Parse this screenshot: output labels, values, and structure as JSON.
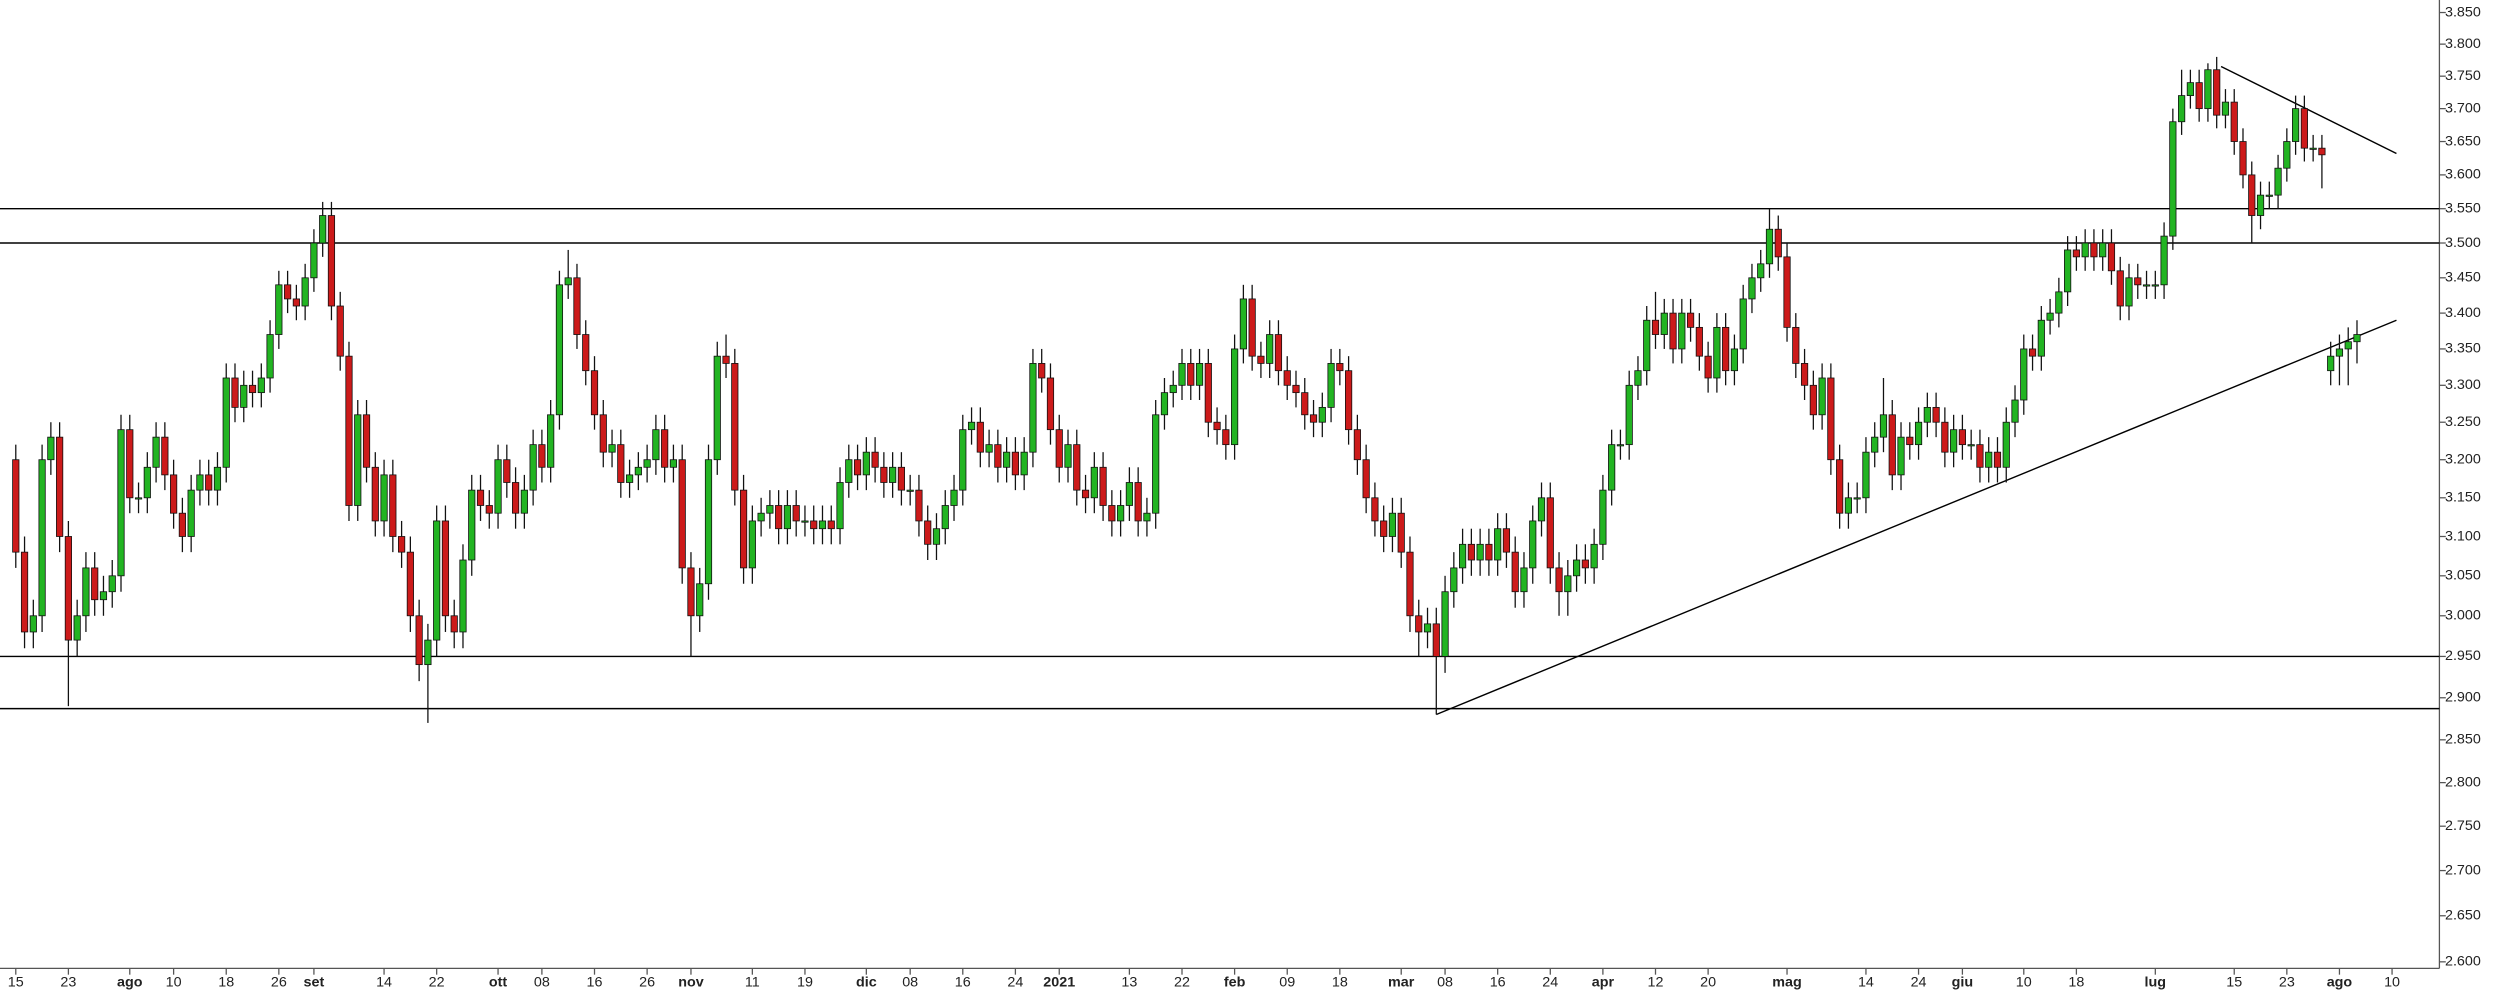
{
  "chart_data": {
    "type": "candlestick",
    "log_scale": true,
    "grid": false,
    "up_color": "#22b422",
    "down_color": "#cc1a1a",
    "line_color": "#000000",
    "xlim": [
      -1.8,
      276.4
    ],
    "ylim": [
      2.593,
      3.87
    ],
    "open": [
      3.2,
      3.08,
      2.98,
      3.0,
      3.2,
      3.23,
      3.1,
      2.97,
      3.0,
      3.06,
      3.02,
      3.03,
      3.05,
      3.24,
      3.15,
      3.15,
      3.19,
      3.23,
      3.18,
      3.13,
      3.1,
      3.16,
      3.18,
      3.16,
      3.19,
      3.31,
      3.27,
      3.3,
      3.29,
      3.31,
      3.37,
      3.44,
      3.42,
      3.41,
      3.45,
      3.5,
      3.54,
      3.41,
      3.34,
      3.14,
      3.26,
      3.19,
      3.12,
      3.18,
      3.1,
      3.08,
      3.0,
      2.94,
      2.97,
      3.12,
      3.0,
      2.98,
      3.07,
      3.16,
      3.14,
      3.13,
      3.2,
      3.17,
      3.13,
      3.16,
      3.22,
      3.19,
      3.26,
      3.44,
      3.45,
      3.37,
      3.32,
      3.26,
      3.21,
      3.22,
      3.17,
      3.18,
      3.19,
      3.2,
      3.24,
      3.19,
      3.2,
      3.06,
      3.0,
      3.04,
      3.2,
      3.34,
      3.33,
      3.16,
      3.06,
      3.12,
      3.13,
      3.14,
      3.11,
      3.14,
      3.12,
      3.12,
      3.11,
      3.12,
      3.11,
      3.17,
      3.2,
      3.18,
      3.21,
      3.19,
      3.17,
      3.19,
      3.16,
      3.16,
      3.12,
      3.09,
      3.11,
      3.14,
      3.16,
      3.24,
      3.25,
      3.21,
      3.22,
      3.19,
      3.21,
      3.18,
      3.21,
      3.33,
      3.31,
      3.24,
      3.19,
      3.22,
      3.16,
      3.15,
      3.19,
      3.14,
      3.12,
      3.14,
      3.17,
      3.12,
      3.13,
      3.26,
      3.29,
      3.3,
      3.33,
      3.3,
      3.33,
      3.25,
      3.24,
      3.22,
      3.35,
      3.42,
      3.34,
      3.33,
      3.37,
      3.32,
      3.3,
      3.29,
      3.26,
      3.25,
      3.27,
      3.33,
      3.32,
      3.24,
      3.2,
      3.15,
      3.12,
      3.1,
      3.13,
      3.08,
      3.0,
      2.98,
      2.99,
      2.95,
      3.03,
      3.06,
      3.09,
      3.07,
      3.09,
      3.07,
      3.11,
      3.08,
      3.03,
      3.06,
      3.12,
      3.15,
      3.06,
      3.03,
      3.05,
      3.07,
      3.06,
      3.09,
      3.16,
      3.22,
      3.22,
      3.3,
      3.32,
      3.39,
      3.37,
      3.4,
      3.35,
      3.4,
      3.38,
      3.34,
      3.31,
      3.38,
      3.32,
      3.35,
      3.42,
      3.45,
      3.47,
      3.52,
      3.48,
      3.38,
      3.33,
      3.3,
      3.26,
      3.31,
      3.2,
      3.13,
      3.15,
      3.15,
      3.21,
      3.23,
      3.26,
      3.18,
      3.23,
      3.22,
      3.25,
      3.27,
      3.25,
      3.21,
      3.24,
      3.22,
      3.22,
      3.19,
      3.21,
      3.19,
      3.25,
      3.28,
      3.35,
      3.34,
      3.39,
      3.4,
      3.43,
      3.49,
      3.48,
      3.5,
      3.48,
      3.5,
      3.46,
      3.41,
      3.45,
      3.44,
      3.44,
      3.44,
      3.51,
      3.68,
      3.72,
      3.74,
      3.7,
      3.76,
      3.69,
      3.71,
      3.65,
      3.6,
      3.54,
      3.57,
      3.57,
      3.61,
      3.65,
      3.7,
      3.64,
      3.64,
      3.32,
      3.34,
      3.35,
      3.36
    ],
    "high": [
      3.22,
      3.1,
      3.02,
      3.22,
      3.25,
      3.25,
      3.12,
      3.02,
      3.08,
      3.08,
      3.05,
      3.07,
      3.26,
      3.26,
      3.17,
      3.21,
      3.25,
      3.25,
      3.2,
      3.15,
      3.18,
      3.2,
      3.2,
      3.21,
      3.33,
      3.33,
      3.32,
      3.32,
      3.33,
      3.39,
      3.46,
      3.46,
      3.44,
      3.47,
      3.52,
      3.56,
      3.56,
      3.43,
      3.36,
      3.28,
      3.28,
      3.21,
      3.2,
      3.2,
      3.12,
      3.1,
      3.02,
      2.99,
      3.14,
      3.14,
      3.02,
      3.09,
      3.18,
      3.18,
      3.16,
      3.22,
      3.22,
      3.19,
      3.18,
      3.24,
      3.24,
      3.28,
      3.46,
      3.49,
      3.47,
      3.39,
      3.34,
      3.28,
      3.24,
      3.24,
      3.2,
      3.21,
      3.22,
      3.26,
      3.26,
      3.22,
      3.22,
      3.08,
      3.06,
      3.22,
      3.36,
      3.37,
      3.35,
      3.18,
      3.14,
      3.15,
      3.16,
      3.16,
      3.16,
      3.16,
      3.14,
      3.14,
      3.14,
      3.14,
      3.19,
      3.22,
      3.22,
      3.23,
      3.23,
      3.21,
      3.21,
      3.21,
      3.18,
      3.18,
      3.14,
      3.13,
      3.16,
      3.18,
      3.26,
      3.27,
      3.27,
      3.24,
      3.24,
      3.23,
      3.23,
      3.23,
      3.35,
      3.35,
      3.33,
      3.26,
      3.24,
      3.24,
      3.18,
      3.21,
      3.21,
      3.16,
      3.16,
      3.19,
      3.19,
      3.15,
      3.28,
      3.31,
      3.32,
      3.35,
      3.35,
      3.35,
      3.35,
      3.27,
      3.26,
      3.37,
      3.44,
      3.44,
      3.36,
      3.39,
      3.39,
      3.34,
      3.32,
      3.31,
      3.28,
      3.29,
      3.35,
      3.35,
      3.34,
      3.26,
      3.22,
      3.17,
      3.14,
      3.15,
      3.15,
      3.1,
      3.02,
      3.01,
      3.01,
      3.05,
      3.08,
      3.11,
      3.11,
      3.11,
      3.11,
      3.13,
      3.13,
      3.1,
      3.08,
      3.14,
      3.17,
      3.17,
      3.08,
      3.07,
      3.09,
      3.09,
      3.11,
      3.18,
      3.24,
      3.24,
      3.32,
      3.34,
      3.41,
      3.43,
      3.42,
      3.42,
      3.42,
      3.42,
      3.4,
      3.36,
      3.4,
      3.4,
      3.37,
      3.44,
      3.47,
      3.49,
      3.55,
      3.54,
      3.5,
      3.4,
      3.35,
      3.32,
      3.33,
      3.33,
      3.22,
      3.17,
      3.17,
      3.23,
      3.25,
      3.31,
      3.28,
      3.25,
      3.25,
      3.27,
      3.29,
      3.29,
      3.27,
      3.26,
      3.26,
      3.24,
      3.24,
      3.23,
      3.23,
      3.27,
      3.3,
      3.37,
      3.37,
      3.41,
      3.42,
      3.45,
      3.51,
      3.51,
      3.52,
      3.52,
      3.52,
      3.52,
      3.48,
      3.47,
      3.47,
      3.46,
      3.46,
      3.53,
      3.7,
      3.76,
      3.76,
      3.76,
      3.77,
      3.78,
      3.73,
      3.73,
      3.67,
      3.62,
      3.59,
      3.59,
      3.63,
      3.67,
      3.72,
      3.72,
      3.66,
      3.66,
      3.36,
      3.37,
      3.38,
      3.39
    ],
    "low": [
      3.06,
      2.96,
      2.96,
      2.98,
      3.18,
      3.08,
      2.89,
      2.95,
      2.98,
      3.0,
      3.0,
      3.01,
      3.03,
      3.13,
      3.13,
      3.13,
      3.17,
      3.16,
      3.11,
      3.08,
      3.08,
      3.14,
      3.14,
      3.14,
      3.17,
      3.25,
      3.25,
      3.27,
      3.27,
      3.29,
      3.35,
      3.4,
      3.39,
      3.39,
      3.43,
      3.48,
      3.39,
      3.32,
      3.12,
      3.12,
      3.17,
      3.1,
      3.1,
      3.08,
      3.06,
      2.98,
      2.92,
      2.87,
      2.95,
      2.98,
      2.96,
      2.96,
      3.05,
      3.12,
      3.11,
      3.11,
      3.15,
      3.11,
      3.11,
      3.14,
      3.17,
      3.17,
      3.24,
      3.42,
      3.35,
      3.3,
      3.24,
      3.19,
      3.19,
      3.15,
      3.15,
      3.16,
      3.17,
      3.18,
      3.17,
      3.17,
      3.04,
      2.95,
      2.98,
      3.02,
      3.18,
      3.31,
      3.14,
      3.04,
      3.04,
      3.1,
      3.11,
      3.09,
      3.09,
      3.1,
      3.1,
      3.09,
      3.09,
      3.09,
      3.09,
      3.15,
      3.16,
      3.16,
      3.17,
      3.15,
      3.15,
      3.14,
      3.14,
      3.1,
      3.07,
      3.07,
      3.09,
      3.12,
      3.14,
      3.22,
      3.19,
      3.19,
      3.17,
      3.17,
      3.16,
      3.16,
      3.19,
      3.29,
      3.22,
      3.17,
      3.17,
      3.14,
      3.13,
      3.13,
      3.12,
      3.1,
      3.1,
      3.12,
      3.1,
      3.1,
      3.11,
      3.24,
      3.27,
      3.28,
      3.28,
      3.28,
      3.23,
      3.22,
      3.2,
      3.2,
      3.33,
      3.32,
      3.31,
      3.31,
      3.3,
      3.28,
      3.27,
      3.24,
      3.23,
      3.23,
      3.25,
      3.3,
      3.22,
      3.18,
      3.13,
      3.1,
      3.08,
      3.08,
      3.06,
      2.98,
      2.95,
      2.96,
      2.88,
      2.93,
      3.01,
      3.04,
      3.05,
      3.05,
      3.05,
      3.05,
      3.06,
      3.01,
      3.01,
      3.04,
      3.1,
      3.04,
      3.0,
      3.0,
      3.03,
      3.04,
      3.04,
      3.07,
      3.14,
      3.2,
      3.2,
      3.28,
      3.3,
      3.35,
      3.35,
      3.33,
      3.33,
      3.36,
      3.32,
      3.29,
      3.29,
      3.3,
      3.3,
      3.33,
      3.4,
      3.43,
      3.45,
      3.46,
      3.36,
      3.31,
      3.28,
      3.24,
      3.24,
      3.18,
      3.11,
      3.11,
      3.13,
      3.13,
      3.19,
      3.21,
      3.16,
      3.16,
      3.2,
      3.2,
      3.23,
      3.23,
      3.19,
      3.19,
      3.2,
      3.2,
      3.17,
      3.17,
      3.17,
      3.17,
      3.23,
      3.26,
      3.32,
      3.32,
      3.37,
      3.38,
      3.41,
      3.46,
      3.46,
      3.46,
      3.46,
      3.44,
      3.39,
      3.39,
      3.42,
      3.42,
      3.42,
      3.42,
      3.49,
      3.66,
      3.7,
      3.68,
      3.68,
      3.67,
      3.67,
      3.63,
      3.58,
      3.5,
      3.52,
      3.55,
      3.55,
      3.59,
      3.63,
      3.62,
      3.62,
      3.58,
      3.3,
      3.3,
      3.3,
      3.33
    ],
    "close": [
      3.08,
      2.98,
      3.0,
      3.2,
      3.23,
      3.1,
      2.97,
      3.0,
      3.06,
      3.02,
      3.03,
      3.05,
      3.24,
      3.15,
      3.15,
      3.19,
      3.23,
      3.18,
      3.13,
      3.1,
      3.16,
      3.18,
      3.16,
      3.19,
      3.31,
      3.27,
      3.3,
      3.29,
      3.31,
      3.37,
      3.44,
      3.42,
      3.41,
      3.45,
      3.5,
      3.54,
      3.41,
      3.34,
      3.14,
      3.26,
      3.19,
      3.12,
      3.18,
      3.1,
      3.08,
      3.0,
      2.94,
      2.97,
      3.12,
      3.0,
      2.98,
      3.07,
      3.16,
      3.14,
      3.13,
      3.2,
      3.17,
      3.13,
      3.16,
      3.22,
      3.19,
      3.26,
      3.44,
      3.45,
      3.37,
      3.32,
      3.26,
      3.21,
      3.22,
      3.17,
      3.18,
      3.19,
      3.2,
      3.24,
      3.19,
      3.2,
      3.06,
      3.0,
      3.04,
      3.2,
      3.34,
      3.33,
      3.16,
      3.06,
      3.12,
      3.13,
      3.14,
      3.11,
      3.14,
      3.12,
      3.12,
      3.11,
      3.12,
      3.11,
      3.17,
      3.2,
      3.18,
      3.21,
      3.19,
      3.17,
      3.19,
      3.16,
      3.16,
      3.12,
      3.09,
      3.11,
      3.14,
      3.16,
      3.24,
      3.25,
      3.21,
      3.22,
      3.19,
      3.21,
      3.18,
      3.21,
      3.33,
      3.31,
      3.24,
      3.19,
      3.22,
      3.16,
      3.15,
      3.19,
      3.14,
      3.12,
      3.14,
      3.17,
      3.12,
      3.13,
      3.26,
      3.29,
      3.3,
      3.33,
      3.3,
      3.33,
      3.25,
      3.24,
      3.22,
      3.35,
      3.42,
      3.34,
      3.33,
      3.37,
      3.32,
      3.3,
      3.29,
      3.26,
      3.25,
      3.27,
      3.33,
      3.32,
      3.24,
      3.2,
      3.15,
      3.12,
      3.1,
      3.13,
      3.08,
      3.0,
      2.98,
      2.99,
      2.95,
      3.03,
      3.06,
      3.09,
      3.07,
      3.09,
      3.07,
      3.11,
      3.08,
      3.03,
      3.06,
      3.12,
      3.15,
      3.06,
      3.03,
      3.05,
      3.07,
      3.06,
      3.09,
      3.16,
      3.22,
      3.22,
      3.3,
      3.32,
      3.39,
      3.37,
      3.4,
      3.35,
      3.4,
      3.38,
      3.34,
      3.31,
      3.38,
      3.32,
      3.35,
      3.42,
      3.45,
      3.47,
      3.52,
      3.48,
      3.38,
      3.33,
      3.3,
      3.26,
      3.31,
      3.2,
      3.13,
      3.15,
      3.15,
      3.21,
      3.23,
      3.26,
      3.18,
      3.23,
      3.22,
      3.25,
      3.27,
      3.25,
      3.21,
      3.24,
      3.22,
      3.22,
      3.19,
      3.21,
      3.19,
      3.25,
      3.28,
      3.35,
      3.34,
      3.39,
      3.4,
      3.43,
      3.49,
      3.48,
      3.5,
      3.48,
      3.5,
      3.46,
      3.41,
      3.45,
      3.44,
      3.44,
      3.44,
      3.51,
      3.68,
      3.72,
      3.74,
      3.7,
      3.76,
      3.69,
      3.71,
      3.65,
      3.6,
      3.54,
      3.57,
      3.57,
      3.61,
      3.65,
      3.7,
      3.64,
      3.64,
      3.63,
      3.34,
      3.35,
      3.36,
      3.37
    ],
    "hlines": [
      3.55,
      3.5,
      2.95,
      2.887
    ],
    "trendlines": [
      {
        "x": [
          162,
          271.5
        ],
        "y": [
          2.88,
          3.39
        ]
      },
      {
        "x": [
          251.5,
          271.5
        ],
        "y": [
          3.765,
          3.632
        ]
      }
    ],
    "xticks": [
      {
        "value": 0,
        "label": "15"
      },
      {
        "value": 6,
        "label": "23"
      },
      {
        "value": 13,
        "label": "ago"
      },
      {
        "value": 18,
        "label": "10"
      },
      {
        "value": 24,
        "label": "18"
      },
      {
        "value": 30,
        "label": "26"
      },
      {
        "value": 34,
        "label": "set"
      },
      {
        "value": 42,
        "label": "14"
      },
      {
        "value": 48,
        "label": "22"
      },
      {
        "value": 55,
        "label": "ott"
      },
      {
        "value": 60,
        "label": "08"
      },
      {
        "value": 66,
        "label": "16"
      },
      {
        "value": 72,
        "label": "26"
      },
      {
        "value": 77,
        "label": "nov"
      },
      {
        "value": 84,
        "label": "11"
      },
      {
        "value": 90,
        "label": "19"
      },
      {
        "value": 97,
        "label": "dic"
      },
      {
        "value": 102,
        "label": "08"
      },
      {
        "value": 108,
        "label": "16"
      },
      {
        "value": 114,
        "label": "24"
      },
      {
        "value": 119,
        "label": "2021"
      },
      {
        "value": 127,
        "label": "13"
      },
      {
        "value": 133,
        "label": "22"
      },
      {
        "value": 139,
        "label": "feb"
      },
      {
        "value": 145,
        "label": "09"
      },
      {
        "value": 151,
        "label": "18"
      },
      {
        "value": 158,
        "label": "mar"
      },
      {
        "value": 163,
        "label": "08"
      },
      {
        "value": 169,
        "label": "16"
      },
      {
        "value": 175,
        "label": "24"
      },
      {
        "value": 181,
        "label": "apr"
      },
      {
        "value": 187,
        "label": "12"
      },
      {
        "value": 193,
        "label": "20"
      },
      {
        "value": 202,
        "label": "mag"
      },
      {
        "value": 211,
        "label": "14"
      },
      {
        "value": 217,
        "label": "24"
      },
      {
        "value": 222,
        "label": "giu"
      },
      {
        "value": 229,
        "label": "10"
      },
      {
        "value": 235,
        "label": "18"
      },
      {
        "value": 244,
        "label": "lug"
      },
      {
        "value": 253,
        "label": "15"
      },
      {
        "value": 259,
        "label": "23"
      },
      {
        "value": 265,
        "label": "ago"
      },
      {
        "value": 271,
        "label": "10"
      }
    ],
    "yticks": [
      {
        "value": 3.85,
        "label": "3.850"
      },
      {
        "value": 3.8,
        "label": "3.800"
      },
      {
        "value": 3.75,
        "label": "3.750"
      },
      {
        "value": 3.7,
        "label": "3.700"
      },
      {
        "value": 3.65,
        "label": "3.650"
      },
      {
        "value": 3.6,
        "label": "3.600"
      },
      {
        "value": 3.55,
        "label": "3.550"
      },
      {
        "value": 3.5,
        "label": "3.500"
      },
      {
        "value": 3.45,
        "label": "3.450"
      },
      {
        "value": 3.4,
        "label": "3.400"
      },
      {
        "value": 3.35,
        "label": "3.350"
      },
      {
        "value": 3.3,
        "label": "3.300"
      },
      {
        "value": 3.25,
        "label": "3.250"
      },
      {
        "value": 3.2,
        "label": "3.200"
      },
      {
        "value": 3.15,
        "label": "3.150"
      },
      {
        "value": 3.1,
        "label": "3.100"
      },
      {
        "value": 3.05,
        "label": "3.050"
      },
      {
        "value": 3.0,
        "label": "3.000"
      },
      {
        "value": 2.95,
        "label": "2.950"
      },
      {
        "value": 2.9,
        "label": "2.900"
      },
      {
        "value": 2.85,
        "label": "2.850"
      },
      {
        "value": 2.8,
        "label": "2.800"
      },
      {
        "value": 2.75,
        "label": "2.750"
      },
      {
        "value": 2.7,
        "label": "2.700"
      },
      {
        "value": 2.65,
        "label": "2.650"
      },
      {
        "value": 2.6,
        "label": "2.600"
      }
    ]
  }
}
